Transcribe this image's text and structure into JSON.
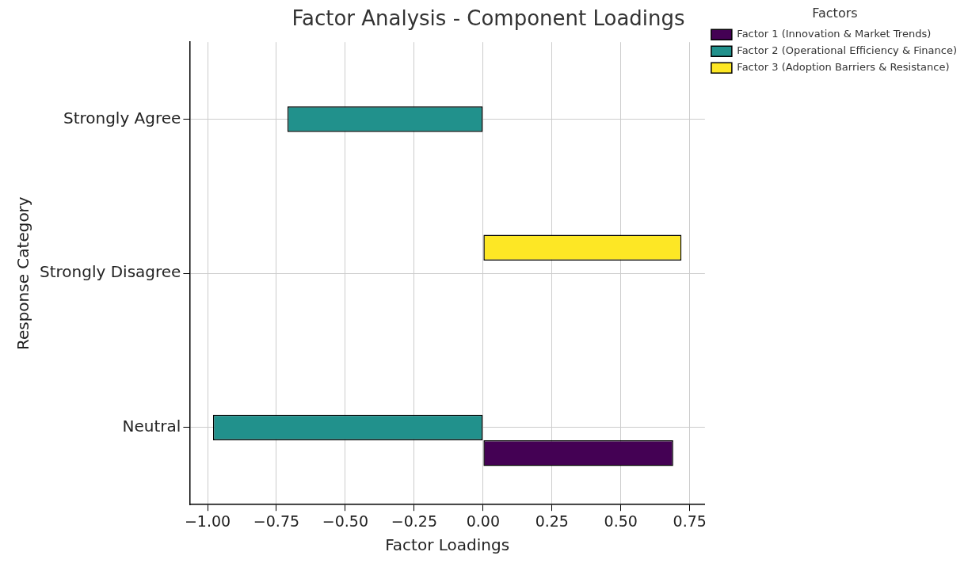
{
  "chart_data": {
    "type": "bar",
    "orientation": "horizontal",
    "title": "Factor Analysis - Component Loadings",
    "xlabel": "Factor Loadings",
    "ylabel": "Response Category",
    "legend_title": "Factors",
    "categories": [
      "Strongly Agree",
      "Strongly Disagree",
      "Neutral"
    ],
    "series": [
      {
        "name": "Factor 1 (Innovation & Market Trends)",
        "color": "#440154",
        "values": [
          0,
          0,
          0.69
        ]
      },
      {
        "name": "Factor 2 (Operational Efficiency & Finance)",
        "color": "#21918c",
        "values": [
          -0.71,
          0,
          -0.98
        ]
      },
      {
        "name": "Factor 3 (Adoption Barriers & Resistance)",
        "color": "#fde725",
        "values": [
          0,
          0.72,
          0
        ]
      }
    ],
    "xlim": [
      -1.065,
      0.805
    ],
    "xticks": [
      {
        "value": -1,
        "label": "−1.00"
      },
      {
        "value": -0.75,
        "label": "−0.75"
      },
      {
        "value": -0.5,
        "label": "−0.50"
      },
      {
        "value": -0.25,
        "label": "−0.25"
      },
      {
        "value": 0,
        "label": "0.00"
      },
      {
        "value": 0.25,
        "label": "0.25"
      },
      {
        "value": 0.5,
        "label": "0.50"
      },
      {
        "value": 0.75,
        "label": "0.75"
      }
    ],
    "grid": true,
    "legend": "top right"
  }
}
